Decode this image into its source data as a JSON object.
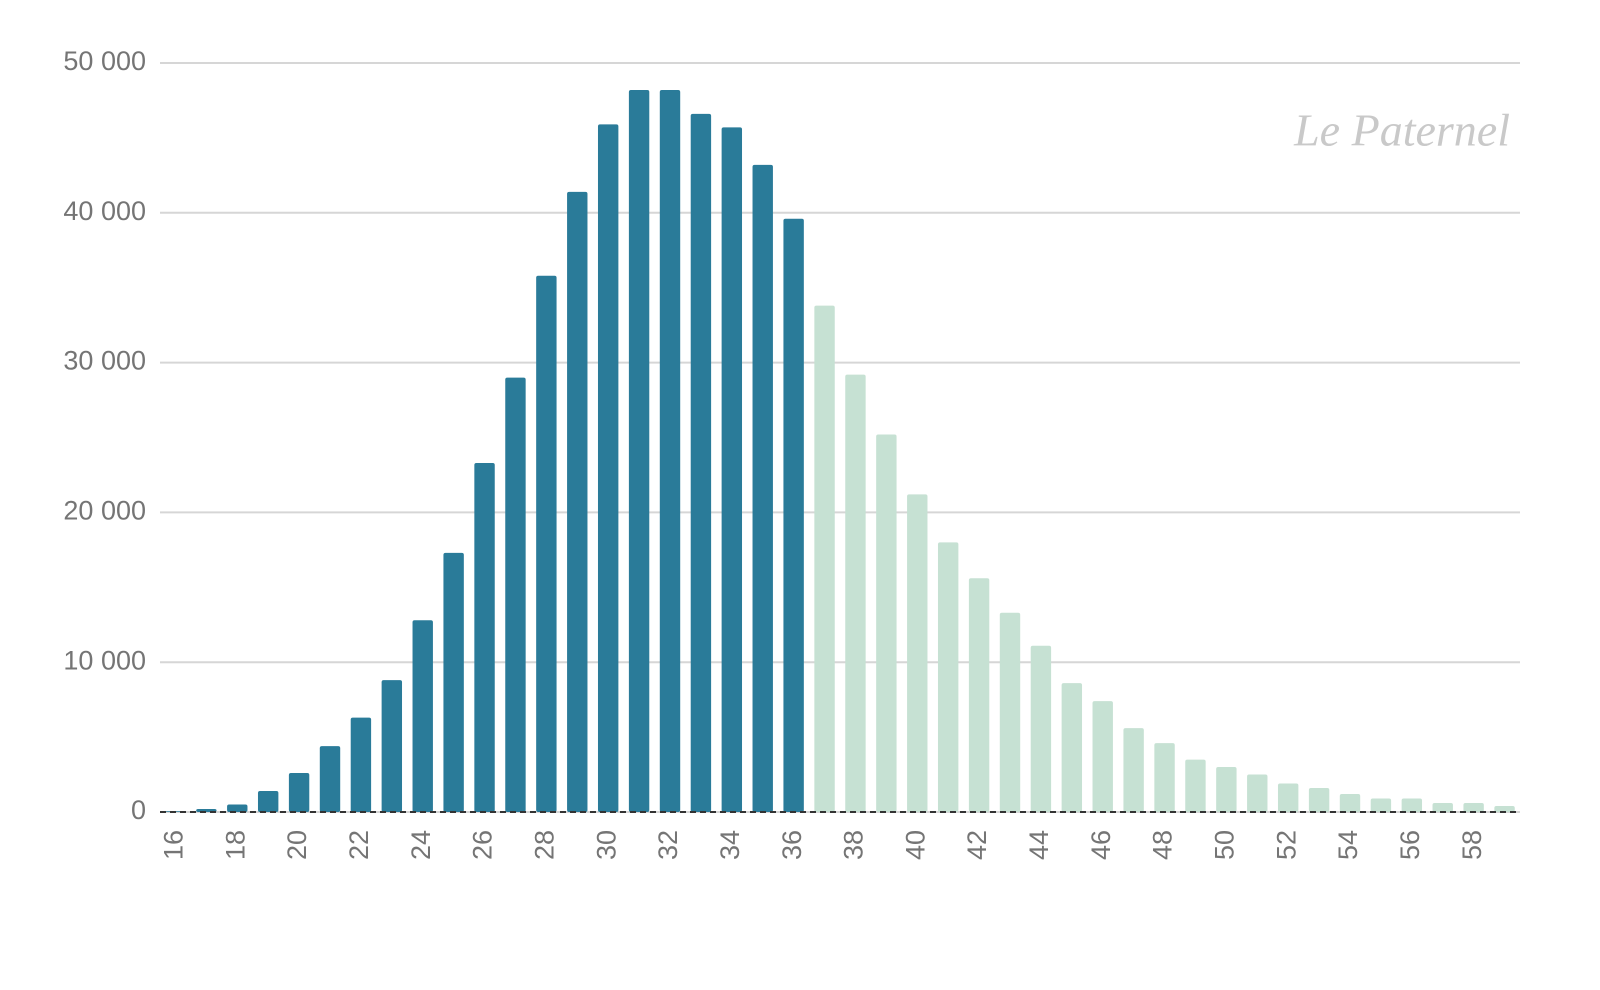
{
  "chart_data": {
    "type": "bar",
    "watermark": "Le Paternel",
    "categories": [
      "16",
      null,
      "18",
      null,
      "20",
      null,
      "22",
      null,
      "24",
      null,
      "26",
      null,
      "28",
      null,
      "30",
      null,
      "32",
      null,
      "34",
      null,
      "36",
      null,
      "38",
      null,
      "40",
      null,
      "42",
      null,
      "44",
      null,
      "46",
      null,
      "48",
      null,
      "50",
      null,
      "52",
      null,
      "54",
      null,
      "56",
      null,
      "58",
      null
    ],
    "values": [
      50,
      200,
      500,
      1400,
      2600,
      4400,
      6300,
      8800,
      12800,
      17300,
      23300,
      29000,
      35800,
      41400,
      45900,
      48200,
      48200,
      46600,
      45700,
      43200,
      39600,
      33800,
      29200,
      25200,
      21200,
      18000,
      15600,
      13300,
      11100,
      8600,
      7400,
      5600,
      4600,
      3500,
      3000,
      2500,
      1900,
      1600,
      1200,
      900,
      900,
      600,
      600,
      400
    ],
    "colors": [
      "#2a7b99",
      "#2a7b99",
      "#2a7b99",
      "#2a7b99",
      "#2a7b99",
      "#2a7b99",
      "#2a7b99",
      "#2a7b99",
      "#2a7b99",
      "#2a7b99",
      "#2a7b99",
      "#2a7b99",
      "#2a7b99",
      "#2a7b99",
      "#2a7b99",
      "#2a7b99",
      "#2a7b99",
      "#2a7b99",
      "#2a7b99",
      "#2a7b99",
      "#2a7b99",
      "#c6e1d3",
      "#c6e1d3",
      "#c6e1d3",
      "#c6e1d3",
      "#c6e1d3",
      "#c6e1d3",
      "#c6e1d3",
      "#c6e1d3",
      "#c6e1d3",
      "#c6e1d3",
      "#c6e1d3",
      "#c6e1d3",
      "#c6e1d3",
      "#c6e1d3",
      "#c6e1d3",
      "#c6e1d3",
      "#c6e1d3",
      "#c6e1d3",
      "#c6e1d3",
      "#c6e1d3",
      "#c6e1d3",
      "#c6e1d3",
      "#c6e1d3"
    ],
    "ylim": [
      0,
      50000
    ],
    "yticks": [
      0,
      {
        "value": 10000,
        "label": "10 000"
      },
      {
        "value": 20000,
        "label": "20 000"
      },
      {
        "value": 30000,
        "label": "30 000"
      },
      {
        "value": 40000,
        "label": "40 000"
      },
      {
        "value": 50000,
        "label": "50 000"
      }
    ],
    "grid": true
  }
}
